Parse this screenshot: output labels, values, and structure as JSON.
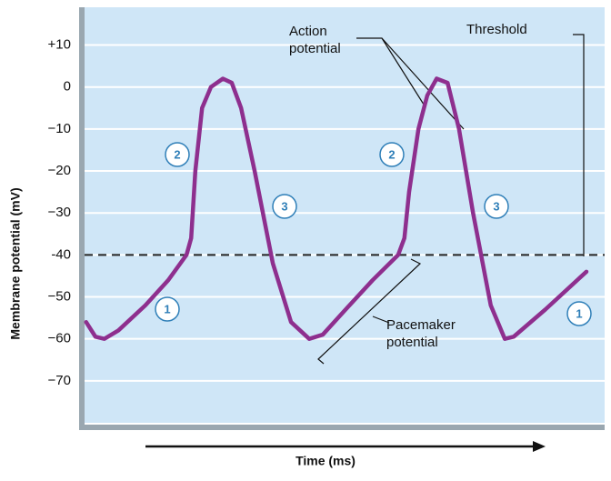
{
  "chart_data": {
    "type": "line",
    "y_label": "Membrane potential (mV)",
    "x_label": "Time (ms)",
    "xlim": [
      0,
      100
    ],
    "ylim": [
      -80,
      19
    ],
    "yticks": [
      {
        "value": 10,
        "label": "+10"
      },
      0,
      {
        "value": -10,
        "label": "−10"
      },
      {
        "value": -20,
        "label": "−20"
      },
      {
        "value": -30,
        "label": "−30"
      },
      {
        "value": -40,
        "label": "-40"
      },
      {
        "value": -50,
        "label": "−50"
      },
      {
        "value": -60,
        "label": "−60"
      },
      {
        "value": -70,
        "label": "−70"
      }
    ],
    "grid": true,
    "threshold": -40,
    "series": [
      {
        "color": "#8e2f8e",
        "x": [
          0.3,
          2.1,
          3.8,
          6.5,
          11.7,
          16.1,
          19.6,
          20.5,
          21.3,
          22.6,
          24.3,
          26.6,
          28.3,
          30.1,
          32.7,
          36.2,
          39.7,
          43.2,
          45.8,
          50.2,
          55.4,
          60.3,
          61.5,
          62.4,
          64.2,
          65.9,
          67.7,
          69.8,
          72.0,
          74.7,
          78.1,
          80.8,
          82.5,
          88.6,
          96.5
        ],
        "values": [
          -56,
          -59.5,
          -60,
          -58,
          -52,
          -46,
          -40,
          -36,
          -20,
          -5,
          0,
          2,
          1,
          -5,
          -20,
          -42,
          -56,
          -60,
          -59,
          -53,
          -46,
          -40,
          -36,
          -25,
          -10,
          -2,
          2,
          1,
          -10,
          -30,
          -52,
          -60,
          -59.5,
          -53,
          -44
        ]
      }
    ],
    "annotations": [
      [
        "Action",
        "potential"
      ],
      [
        "Threshold"
      ],
      [
        "Pacemaker",
        "potential"
      ]
    ],
    "phase_labels": [
      "1",
      "2",
      "3",
      "2",
      "3",
      "1"
    ]
  }
}
